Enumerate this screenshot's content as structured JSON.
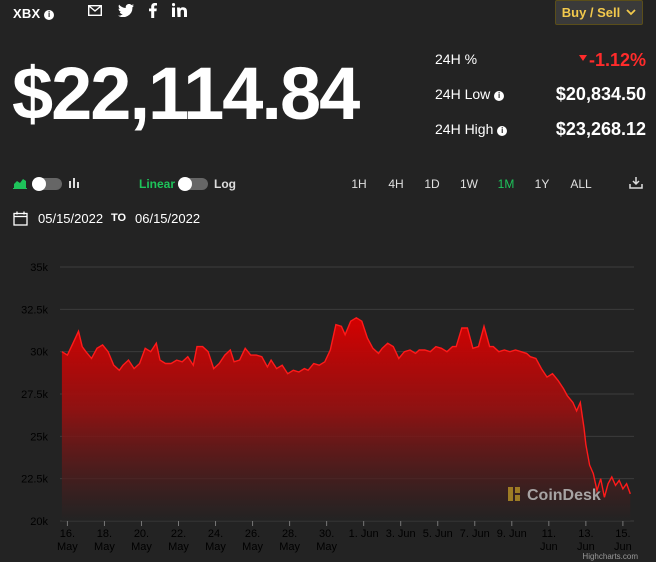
{
  "header": {
    "ticker": "XBX",
    "info_icon": "info-icon",
    "share_icons": [
      "email-icon",
      "twitter-icon",
      "facebook-icon",
      "linkedin-icon"
    ],
    "buy_sell_label": "Buy / Sell"
  },
  "price": {
    "display": "$22,114.84"
  },
  "stats": {
    "change_label": "24H %",
    "change_value": "-1.12%",
    "low_label": "24H Low",
    "low_value": "$20,834.50",
    "high_label": "24H High",
    "high_value": "$23,268.12"
  },
  "controls": {
    "linear_label": "Linear",
    "log_label": "Log",
    "ranges": [
      "1H",
      "4H",
      "1D",
      "1W",
      "1M",
      "1Y",
      "ALL"
    ],
    "selected_range": "1M"
  },
  "date_range": {
    "from": "05/15/2022",
    "to_label": "TO",
    "to": "06/15/2022"
  },
  "chart_data": {
    "type": "area",
    "ylim": [
      20000,
      35000
    ],
    "y_ticks": [
      "20k",
      "22.5k",
      "25k",
      "27.5k",
      "30k",
      "32.5k",
      "35k"
    ],
    "x_ticks": [
      {
        "x": 16,
        "line1": "16.",
        "line2": "May"
      },
      {
        "x": 18,
        "line1": "18.",
        "line2": "May"
      },
      {
        "x": 20,
        "line1": "20.",
        "line2": "May"
      },
      {
        "x": 22,
        "line1": "22.",
        "line2": "May"
      },
      {
        "x": 24,
        "line1": "24.",
        "line2": "May"
      },
      {
        "x": 26,
        "line1": "26.",
        "line2": "May"
      },
      {
        "x": 28,
        "line1": "28.",
        "line2": "May"
      },
      {
        "x": 30,
        "line1": "30.",
        "line2": "May"
      },
      {
        "x": 32,
        "line1": "1. Jun",
        "line2": ""
      },
      {
        "x": 34,
        "line1": "3. Jun",
        "line2": ""
      },
      {
        "x": 36,
        "line1": "5. Jun",
        "line2": ""
      },
      {
        "x": 38,
        "line1": "7. Jun",
        "line2": ""
      },
      {
        "x": 40,
        "line1": "9. Jun",
        "line2": ""
      },
      {
        "x": 42,
        "line1": "11.",
        "line2": "Jun"
      },
      {
        "x": 44,
        "line1": "13.",
        "line2": "Jun"
      },
      {
        "x": 46,
        "line1": "15.",
        "line2": "Jun"
      }
    ],
    "series": [
      {
        "x": [
          15.7,
          16.0,
          16.3,
          16.6,
          16.8,
          17.0,
          17.3,
          17.6,
          17.9,
          18.2,
          18.5,
          18.8,
          19.0,
          19.3,
          19.6,
          19.9,
          20.2,
          20.5,
          20.8,
          21.0,
          21.3,
          21.6,
          21.9,
          22.2,
          22.5,
          22.8,
          23.0,
          23.3,
          23.6,
          23.9,
          24.2,
          24.5,
          24.8,
          25.0,
          25.3,
          25.6,
          25.9,
          26.2,
          26.5,
          26.8,
          27.0,
          27.3,
          27.6,
          27.9,
          28.2,
          28.5,
          28.8,
          29.0,
          29.3,
          29.6,
          29.9,
          30.2,
          30.5,
          30.8,
          31.0,
          31.3,
          31.6,
          31.9,
          32.2,
          32.5,
          32.8,
          33.0,
          33.3,
          33.6,
          33.9,
          34.2,
          34.5,
          34.8,
          35.0,
          35.3,
          35.6,
          35.9,
          36.2,
          36.5,
          36.8,
          37.0,
          37.3,
          37.6,
          37.9,
          38.2,
          38.5,
          38.8,
          39.0,
          39.3,
          39.6,
          39.9,
          40.2,
          40.5,
          40.8,
          41.0,
          41.3,
          41.6,
          41.9,
          42.2,
          42.5,
          42.8,
          43.0,
          43.3,
          43.5,
          43.7,
          43.9,
          44.0,
          44.2,
          44.4,
          44.6,
          44.8,
          45.0,
          45.2,
          45.4,
          45.6,
          45.8,
          46.0,
          46.2,
          46.4
        ],
        "values": [
          30000,
          29800,
          30500,
          31200,
          30300,
          30000,
          29600,
          30200,
          30400,
          30000,
          29200,
          28900,
          29200,
          29500,
          29000,
          29300,
          30200,
          30000,
          30500,
          29500,
          29300,
          29300,
          29500,
          29400,
          29700,
          29200,
          30300,
          30300,
          30000,
          29000,
          29300,
          29800,
          30100,
          29400,
          29500,
          30200,
          29800,
          29800,
          29700,
          29100,
          29500,
          29000,
          29200,
          28700,
          28900,
          28800,
          29000,
          28900,
          29300,
          29200,
          29400,
          30100,
          31600,
          31500,
          31000,
          31800,
          32000,
          31800,
          30800,
          30200,
          29900,
          30200,
          30500,
          30300,
          29600,
          30000,
          30100,
          29900,
          30100,
          30100,
          30000,
          30300,
          30200,
          30000,
          30300,
          30300,
          31400,
          31400,
          30200,
          30300,
          31500,
          30300,
          30300,
          30000,
          30100,
          30000,
          30100,
          30000,
          29900,
          29700,
          29600,
          29000,
          28500,
          28700,
          28300,
          27800,
          27400,
          27000,
          26500,
          27000,
          25500,
          24500,
          23300,
          22800,
          21800,
          22500,
          21400,
          22200,
          22600,
          22100,
          22400,
          21900,
          22200,
          21600
        ]
      }
    ]
  },
  "watermark": {
    "brand": "CoinDesk",
    "credit": "Highcharts.com"
  }
}
